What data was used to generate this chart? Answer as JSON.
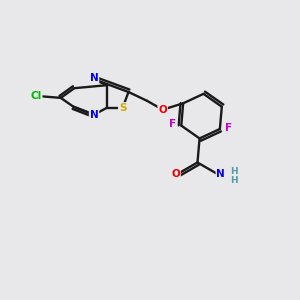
{
  "bg_color": "#e8e8ea",
  "bond_color": "#1a1a1a",
  "atom_colors": {
    "Cl": "#00bb00",
    "N": "#0000ee",
    "S": "#ccaa00",
    "O": "#ee0000",
    "F": "#cc00cc",
    "C": "#1a1a1a",
    "NH": "#5599aa"
  },
  "figsize": [
    3.0,
    3.0
  ],
  "dpi": 100
}
